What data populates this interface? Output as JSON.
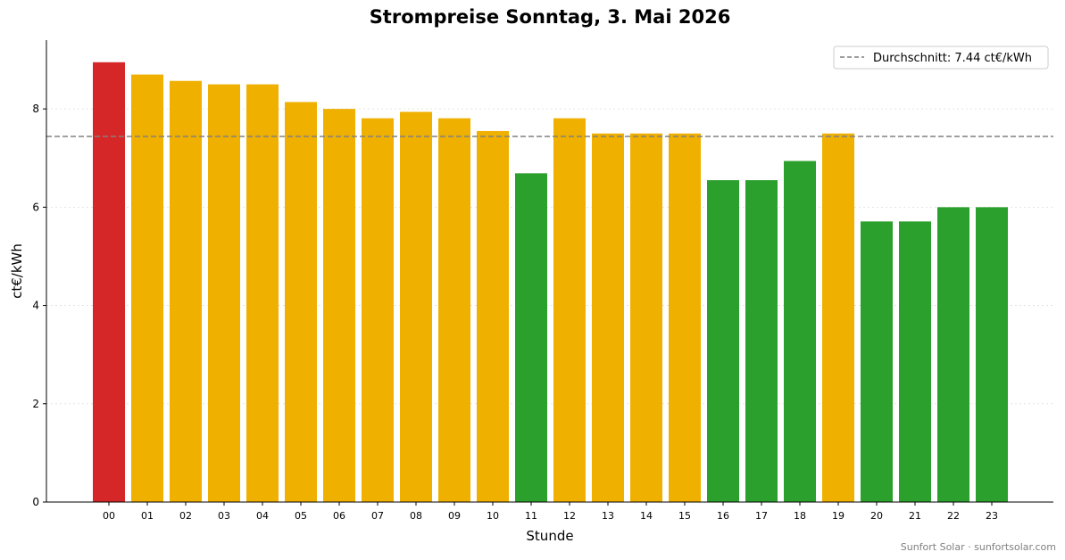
{
  "chart_data": {
    "type": "bar",
    "title": "Strompreise Sonntag, 3. Mai 2026",
    "xlabel": "Stunde",
    "ylabel": "ct€/kWh",
    "categories": [
      "00",
      "01",
      "02",
      "03",
      "04",
      "05",
      "06",
      "07",
      "08",
      "09",
      "10",
      "11",
      "12",
      "13",
      "14",
      "15",
      "16",
      "17",
      "18",
      "19",
      "20",
      "21",
      "22",
      "23"
    ],
    "values": [
      8.95,
      8.7,
      8.57,
      8.5,
      8.5,
      8.14,
      8.0,
      7.81,
      7.94,
      7.81,
      7.55,
      6.69,
      7.81,
      7.5,
      7.5,
      7.5,
      6.55,
      6.55,
      6.94,
      7.5,
      5.71,
      5.71,
      6.0,
      6.0
    ],
    "bar_colors": [
      "#d62728",
      "#f0b000",
      "#f0b000",
      "#f0b000",
      "#f0b000",
      "#f0b000",
      "#f0b000",
      "#f0b000",
      "#f0b000",
      "#f0b000",
      "#f0b000",
      "#2ca02c",
      "#f0b000",
      "#f0b000",
      "#f0b000",
      "#f0b000",
      "#2ca02c",
      "#2ca02c",
      "#2ca02c",
      "#f0b000",
      "#2ca02c",
      "#2ca02c",
      "#2ca02c",
      "#2ca02c"
    ],
    "ylim": [
      0,
      9.4
    ],
    "yticks": [
      0,
      2,
      4,
      6,
      8
    ],
    "grid": "horizontal dotted",
    "reference_line": {
      "value": 7.44,
      "label": "Durchschnitt: 7.44 ct€/kWh",
      "color": "#808080",
      "style": "dashed"
    },
    "legend": {
      "placement": "top-right",
      "entries": [
        "Durchschnitt: 7.44 ct€/kWh"
      ]
    }
  },
  "footer": {
    "credit": "Sunfort Solar · sunfortsolar.com"
  }
}
